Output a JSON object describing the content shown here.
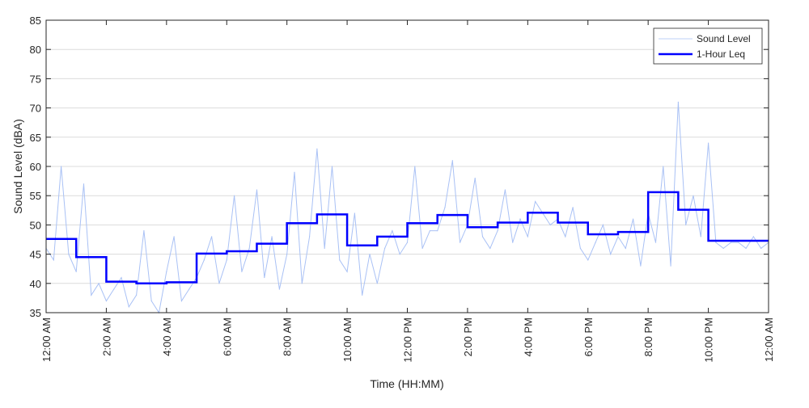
{
  "chart_data": {
    "type": "line",
    "title": "",
    "xlabel": "Time (HH:MM)",
    "ylabel": "Sound Level (dBA)",
    "ylim": [
      35,
      85
    ],
    "xlim_hours": [
      0,
      24
    ],
    "grid": "horizontal",
    "legend_position": "top-right",
    "yticks": [
      35,
      40,
      45,
      50,
      55,
      60,
      65,
      70,
      75,
      80,
      85
    ],
    "xticks": [
      {
        "hour": 0,
        "label": "12:00 AM"
      },
      {
        "hour": 2,
        "label": "2:00 AM"
      },
      {
        "hour": 4,
        "label": "4:00 AM"
      },
      {
        "hour": 6,
        "label": "6:00 AM"
      },
      {
        "hour": 8,
        "label": "8:00 AM"
      },
      {
        "hour": 10,
        "label": "10:00 AM"
      },
      {
        "hour": 12,
        "label": "12:00 PM"
      },
      {
        "hour": 14,
        "label": "2:00 PM"
      },
      {
        "hour": 16,
        "label": "4:00 PM"
      },
      {
        "hour": 18,
        "label": "6:00 PM"
      },
      {
        "hour": 20,
        "label": "8:00 PM"
      },
      {
        "hour": 22,
        "label": "10:00 PM"
      },
      {
        "hour": 24,
        "label": "12:00 AM"
      }
    ],
    "series": [
      {
        "name": "Sound Level",
        "color": "#a9c1f5",
        "interval_hours": 0.25,
        "values": [
          46,
          44,
          60,
          45,
          42,
          57,
          38,
          40,
          37,
          39,
          41,
          36,
          38,
          49,
          37,
          35,
          42,
          48,
          37,
          39,
          41,
          44,
          48,
          40,
          44,
          55,
          42,
          46,
          56,
          41,
          48,
          39,
          45,
          59,
          40,
          48,
          63,
          46,
          60,
          44,
          42,
          52,
          38,
          45,
          40,
          46,
          49,
          45,
          47,
          60,
          46,
          49,
          49,
          53,
          61,
          47,
          50,
          58,
          48,
          46,
          49,
          56,
          47,
          51,
          48,
          54,
          52,
          50,
          51,
          48,
          53,
          46,
          44,
          47,
          50,
          45,
          48,
          46,
          51,
          43,
          52,
          47,
          60,
          43,
          71,
          50,
          55,
          48,
          64,
          47,
          46,
          47,
          47,
          46,
          48,
          46,
          47
        ]
      },
      {
        "name": "1-Hour Leq",
        "color": "#0000ff",
        "interval_hours": 1,
        "values": [
          47.6,
          44.5,
          40.3,
          40.0,
          40.2,
          45.1,
          45.5,
          46.8,
          50.3,
          51.8,
          46.5,
          48.0,
          50.3,
          51.7,
          49.6,
          50.4,
          52.1,
          50.4,
          48.4,
          48.8,
          55.6,
          52.6,
          47.3,
          47.3
        ]
      }
    ]
  }
}
